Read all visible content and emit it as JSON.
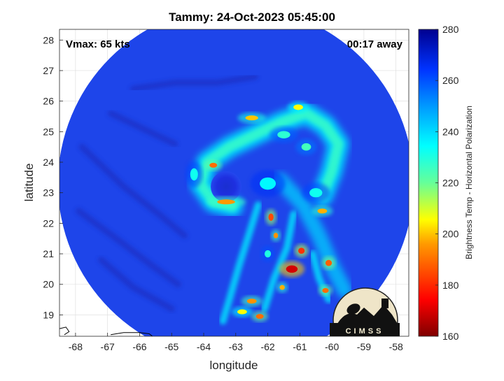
{
  "chart_data": {
    "type": "heatmap",
    "title": "Tammy: 24-Oct-2023 05:45:00",
    "xlabel": "longitude",
    "ylabel": "latitude",
    "xlim": [
      -68.5,
      -57.6
    ],
    "ylim": [
      18.3,
      28.35
    ],
    "x_ticks": [
      -68,
      -67,
      -66,
      -65,
      -64,
      -63,
      -62,
      -61,
      -60,
      -59,
      -58
    ],
    "y_ticks": [
      19,
      20,
      21,
      22,
      23,
      24,
      25,
      26,
      27,
      28
    ],
    "grid": true,
    "annotations": {
      "left": "Vmax: 65 kts",
      "right": "00:17 away"
    },
    "colorbar": {
      "label": "Brightness Temp - Horizontal Polarization",
      "min": 160,
      "max": 280,
      "ticks": [
        160,
        180,
        200,
        220,
        240,
        260,
        280
      ]
    },
    "swath": {
      "center_lon": -63.0,
      "center_lat": 23.3,
      "radius_deg": 5.55
    },
    "storm_center": {
      "lon": -63.3,
      "lat": 23.2
    },
    "logo_text": "CIMSS"
  }
}
